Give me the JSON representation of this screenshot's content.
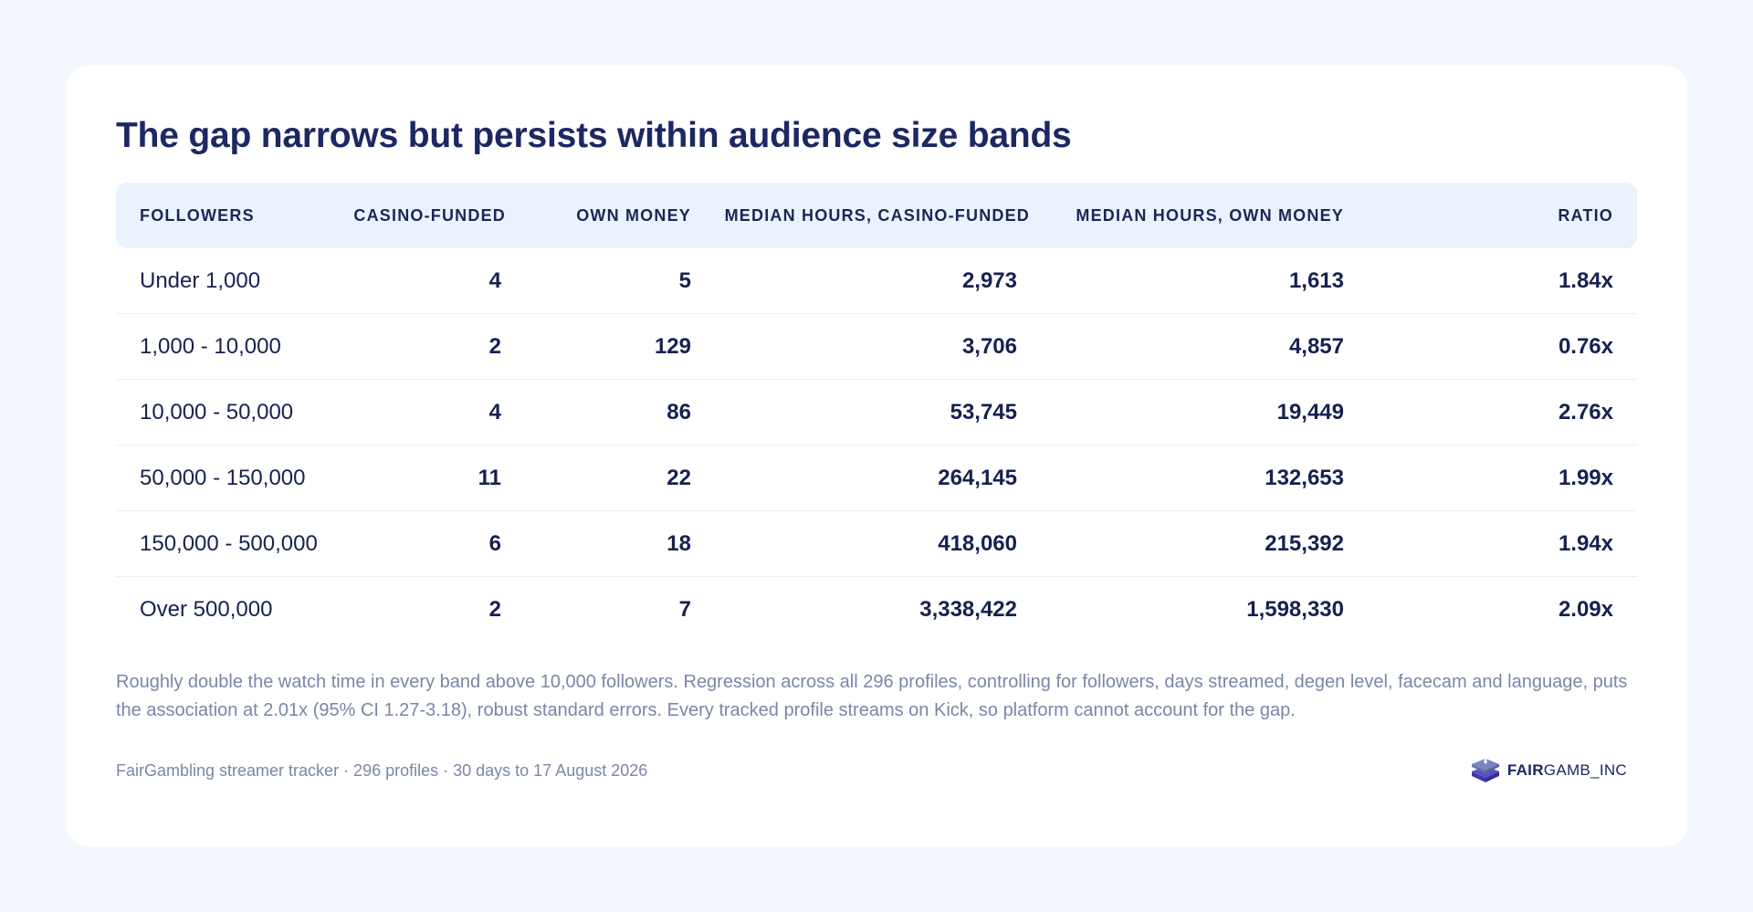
{
  "title": "The gap narrows but persists within audience size bands",
  "table": {
    "headers": [
      "FOLLOWERS",
      "CASINO-FUNDED",
      "OWN MONEY",
      "MEDIAN HOURS, CASINO-FUNDED",
      "MEDIAN HOURS, OWN MONEY",
      "RATIO"
    ],
    "rows": [
      [
        "Under 1,000",
        "4",
        "5",
        "2,973",
        "1,613",
        "1.84x"
      ],
      [
        "1,000 - 10,000",
        "2",
        "129",
        "3,706",
        "4,857",
        "0.76x"
      ],
      [
        "10,000 - 50,000",
        "4",
        "86",
        "53,745",
        "19,449",
        "2.76x"
      ],
      [
        "50,000 - 150,000",
        "11",
        "22",
        "264,145",
        "132,653",
        "1.99x"
      ],
      [
        "150,000 - 500,000",
        "6",
        "18",
        "418,060",
        "215,392",
        "1.94x"
      ],
      [
        "Over 500,000",
        "2",
        "7",
        "3,338,422",
        "1,598,330",
        "2.09x"
      ]
    ]
  },
  "note": "Roughly double the watch time in every band above 10,000 followers. Regression across all 296 profiles, controlling for followers, days streamed, degen level, facecam and language, puts the association at 2.01x (95% CI 1.27-3.18), robust standard errors. Every tracked profile streams on Kick, so platform cannot account for the gap.",
  "footer": {
    "source": "FairGambling streamer tracker · 296 profiles · 30 days to 17 August 2026",
    "logo_bold": "FAIR",
    "logo_light": "GAMB_INC",
    "logo_icon": "stacked-chip-icon"
  },
  "colors": {
    "page_background": "#f3f7fe",
    "card": "#ffffff",
    "header_row": "#eaf2fe",
    "title_text": "#1c2862",
    "body_text": "#172150",
    "muted_text": "#7b86a6",
    "logo_purple": "#5b4fc9"
  }
}
